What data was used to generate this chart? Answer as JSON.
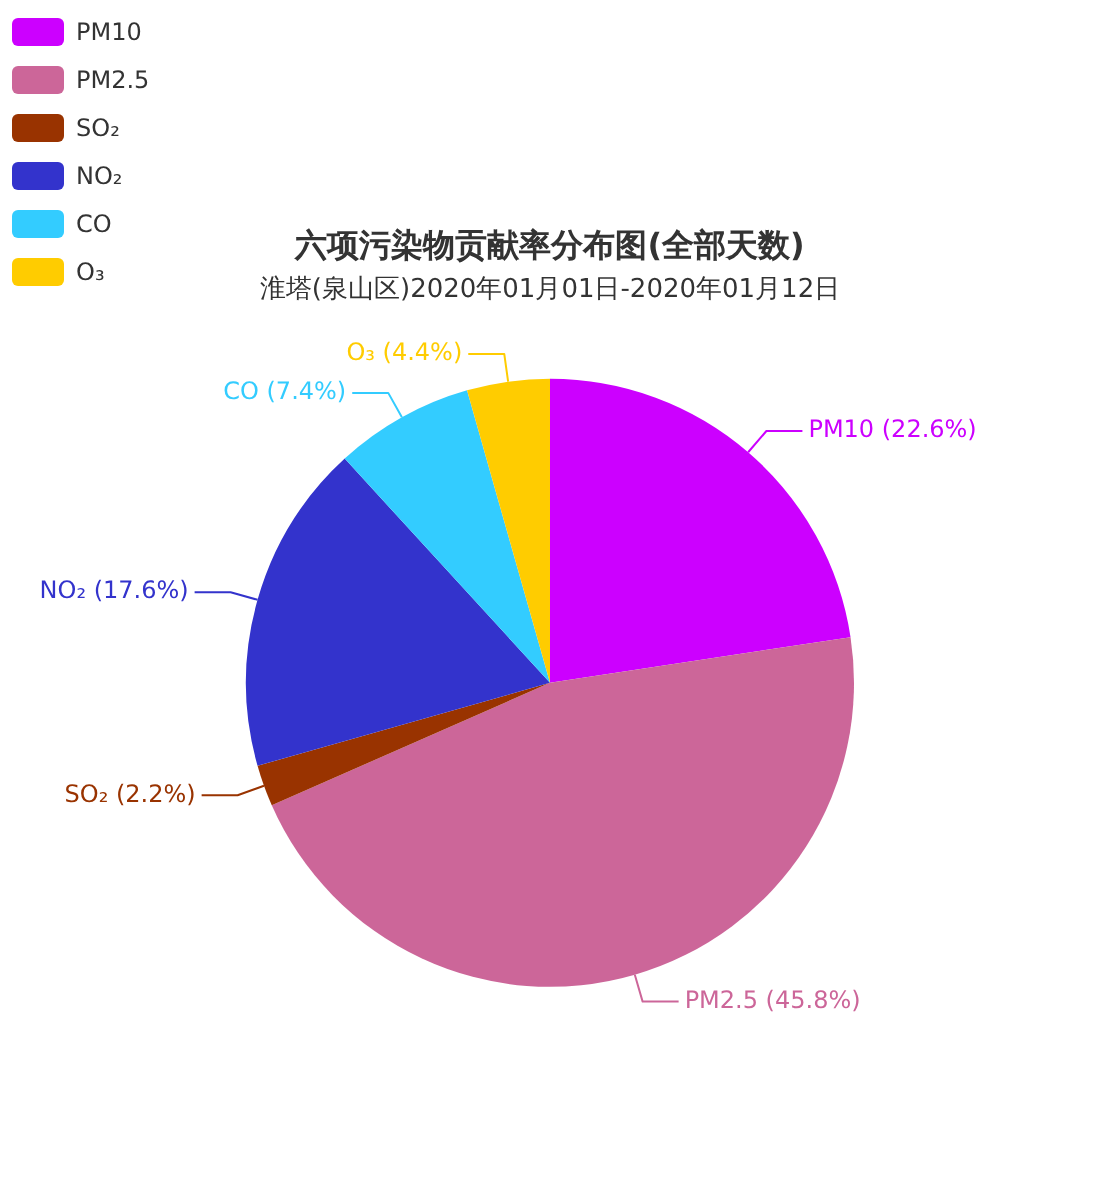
{
  "chart_data": {
    "type": "pie",
    "title": "六项污染物贡献率分布图(全部天数)",
    "subtitle": "淮塔(泉山区)2020年01月01日-2020年01月12日",
    "categories": [
      "PM10",
      "PM2.5",
      "SO₂",
      "NO₂",
      "CO",
      "O₃"
    ],
    "values": [
      22.6,
      45.8,
      2.2,
      17.6,
      7.4,
      4.4
    ],
    "value_labels": [
      "PM10 (22.6%)",
      "PM2.5 (45.8%)",
      "SO₂ (2.2%)",
      "NO₂ (17.6%)",
      "CO (7.4%)",
      "O₃ (4.4%)"
    ],
    "colors": [
      "#cc00ff",
      "#cc6699",
      "#993300",
      "#3333cc",
      "#33ccff",
      "#ffcc00"
    ],
    "legend": "top left"
  }
}
